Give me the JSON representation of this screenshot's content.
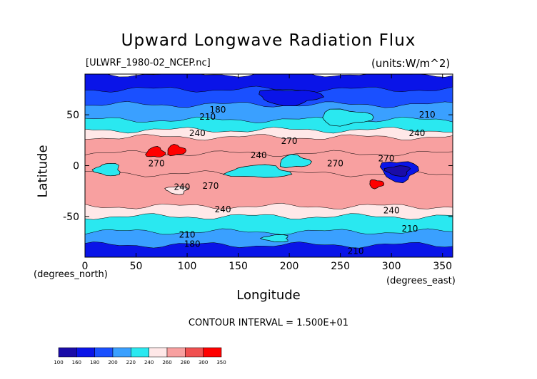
{
  "chart_data": {
    "type": "heatmap",
    "title": "Upward Longwave Radiation Flux",
    "file_label": "[ULWRF_1980-02_NCEP.nc]",
    "units_label": "(units:W/m^2)",
    "xlabel": "Longitude",
    "ylabel": "Latitude",
    "x_unit_label": "(degrees_east)",
    "y_unit_label": "(degrees_north)",
    "xlim": [
      0,
      360
    ],
    "ylim": [
      -90,
      90
    ],
    "x_ticks": [
      0,
      50,
      100,
      150,
      200,
      250,
      300,
      350
    ],
    "y_ticks": [
      -50,
      0,
      50
    ],
    "contour_interval_text": "CONTOUR INTERVAL = 1.500E+01",
    "contour_labels": [
      {
        "lon": 130,
        "lat": 55,
        "text": "180"
      },
      {
        "lon": 120,
        "lat": 48,
        "text": "210"
      },
      {
        "lon": 335,
        "lat": 50,
        "text": "210"
      },
      {
        "lon": 110,
        "lat": 32,
        "text": "240"
      },
      {
        "lon": 325,
        "lat": 32,
        "text": "240"
      },
      {
        "lon": 200,
        "lat": 24,
        "text": "270"
      },
      {
        "lon": 70,
        "lat": 2,
        "text": "270"
      },
      {
        "lon": 170,
        "lat": 10,
        "text": "240"
      },
      {
        "lon": 245,
        "lat": 2,
        "text": "270"
      },
      {
        "lon": 295,
        "lat": 7,
        "text": "270"
      },
      {
        "lon": 95,
        "lat": -21,
        "text": "240"
      },
      {
        "lon": 123,
        "lat": -20,
        "text": "270"
      },
      {
        "lon": 135,
        "lat": -43,
        "text": "240"
      },
      {
        "lon": 300,
        "lat": -44,
        "text": "240"
      },
      {
        "lon": 100,
        "lat": -68,
        "text": "210"
      },
      {
        "lon": 318,
        "lat": -62,
        "text": "210"
      },
      {
        "lon": 105,
        "lat": -77,
        "text": "180"
      },
      {
        "lon": 265,
        "lat": -84,
        "text": "210"
      }
    ],
    "colorbar": {
      "levels": [
        "100",
        "160",
        "180",
        "200",
        "220",
        "240",
        "260",
        "280",
        "300",
        "350"
      ],
      "colors": [
        "#1a0ca8",
        "#0a14e8",
        "#1a50ff",
        "#3aa0ff",
        "#2ae8f0",
        "#ffe8e8",
        "#f8a0a0",
        "#f05050",
        "#ff0000"
      ]
    },
    "bands": [
      {
        "lat_top": 90,
        "lat_bottom": 75,
        "value": 160
      },
      {
        "lat_top": 75,
        "lat_bottom": 60,
        "value": 180
      },
      {
        "lat_top": 60,
        "lat_bottom": 45,
        "value": 200
      },
      {
        "lat_top": 45,
        "lat_bottom": 35,
        "value": 220
      },
      {
        "lat_top": 35,
        "lat_bottom": 28,
        "value": 240
      },
      {
        "lat_top": 28,
        "lat_bottom": 12,
        "value": 270
      },
      {
        "lat_top": 12,
        "lat_bottom": -8,
        "value": 260
      },
      {
        "lat_top": -8,
        "lat_bottom": -40,
        "value": 270
      },
      {
        "lat_top": -40,
        "lat_bottom": -50,
        "value": 240
      },
      {
        "lat_top": -50,
        "lat_bottom": -65,
        "value": 220
      },
      {
        "lat_top": -65,
        "lat_bottom": -78,
        "value": 200
      },
      {
        "lat_top": -78,
        "lat_bottom": -90,
        "value": 170
      }
    ],
    "features": [
      {
        "lon_min": 60,
        "lon_max": 78,
        "lat_min": 8,
        "lat_max": 18,
        "value": 310
      },
      {
        "lon_min": 80,
        "lon_max": 98,
        "lat_min": 10,
        "lat_max": 20,
        "value": 310
      },
      {
        "lon_min": 278,
        "lon_max": 292,
        "lat_min": -22,
        "lat_max": -14,
        "value": 310
      },
      {
        "lon_min": 290,
        "lon_max": 325,
        "lat_min": -15,
        "lat_max": 5,
        "value": 170
      },
      {
        "lon_min": 295,
        "lon_max": 318,
        "lat_min": -10,
        "lat_max": 0,
        "value": 120
      },
      {
        "lon_min": 10,
        "lon_max": 35,
        "lat_min": -10,
        "lat_max": 2,
        "value": 225
      },
      {
        "lon_min": 140,
        "lon_max": 200,
        "lat_min": -12,
        "lat_max": 0,
        "value": 220
      },
      {
        "lon_min": 190,
        "lon_max": 220,
        "lat_min": -2,
        "lat_max": 10,
        "value": 220
      },
      {
        "lon_min": 230,
        "lon_max": 280,
        "lat_min": 40,
        "lat_max": 55,
        "value": 220
      },
      {
        "lon_min": 170,
        "lon_max": 230,
        "lat_min": 60,
        "lat_max": 75,
        "value": 175
      },
      {
        "lon_min": 80,
        "lon_max": 100,
        "lat_min": -28,
        "lat_max": -20,
        "value": 255
      },
      {
        "lon_min": 175,
        "lon_max": 200,
        "lat_min": -75,
        "lat_max": -68,
        "value": 230
      }
    ]
  }
}
